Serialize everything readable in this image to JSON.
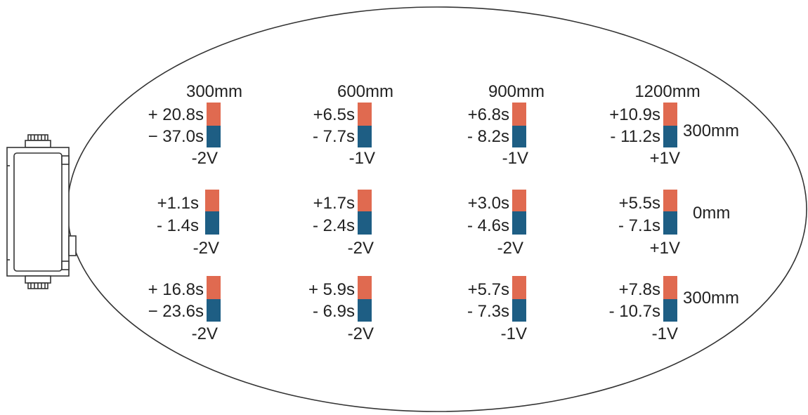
{
  "colors": {
    "positive_bar": "#e06a50",
    "negative_bar": "#1e5e84",
    "outline": "#333333"
  },
  "column_headers": [
    "300mm",
    "600mm",
    "900mm",
    "1200mm"
  ],
  "row_labels": [
    "300mm",
    "0mm",
    "300mm"
  ],
  "cells": [
    [
      {
        "plus": "+ 20.8s",
        "minus": "− 37.0s",
        "voltage": "-2V"
      },
      {
        "plus": "+6.5s",
        "minus": "- 7.7s",
        "voltage": "-1V"
      },
      {
        "plus": "+6.8s",
        "minus": "- 8.2s",
        "voltage": "-1V"
      },
      {
        "plus": "+10.9s",
        "minus": "- 11.2s",
        "voltage": "+1V"
      }
    ],
    [
      {
        "plus": "+1.1s",
        "minus": "- 1.4s",
        "voltage": "-2V"
      },
      {
        "plus": "+1.7s",
        "minus": "- 2.4s",
        "voltage": "-2V"
      },
      {
        "plus": "+3.0s",
        "minus": "- 4.6s",
        "voltage": "-2V"
      },
      {
        "plus": "+5.5s",
        "minus": "- 7.1s",
        "voltage": "+1V"
      }
    ],
    [
      {
        "plus": "+ 16.8s",
        "minus": "− 23.6s",
        "voltage": "-2V"
      },
      {
        "plus": "+ 5.9s",
        "minus": "- 6.9s",
        "voltage": "-2V"
      },
      {
        "plus": "+5.7s",
        "minus": "- 7.3s",
        "voltage": "-1V"
      },
      {
        "plus": "+7.8s",
        "minus": "- 10.7s",
        "voltage": "-1V"
      }
    ]
  ]
}
